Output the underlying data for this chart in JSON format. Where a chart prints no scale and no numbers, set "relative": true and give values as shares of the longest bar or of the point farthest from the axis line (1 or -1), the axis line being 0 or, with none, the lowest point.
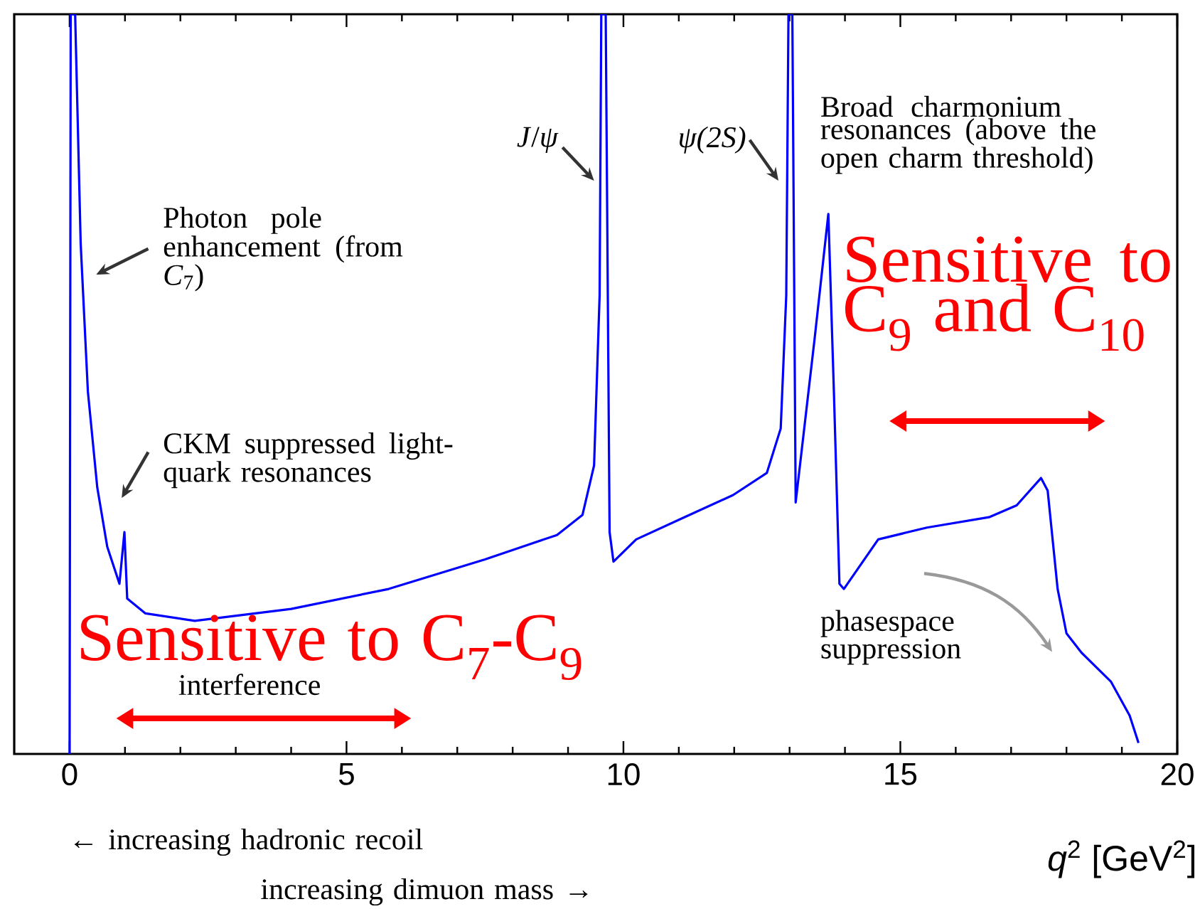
{
  "chart_data": {
    "type": "line",
    "relative": true,
    "xlabel": "*q*$^{2}$ [GeV$^{2}$]",
    "xlim": [
      -1,
      20
    ],
    "xticks": [
      0,
      5,
      10,
      15,
      20
    ],
    "series": [
      {
        "color": "#0000ff",
        "x": [
          0,
          0.02,
          0.1,
          0.2,
          0.33,
          0.5,
          0.68,
          0.9,
          0.99,
          1.04,
          1.37,
          2.26,
          4.0,
          5.76,
          7.5,
          8.8,
          9.26,
          9.47,
          9.57,
          9.6,
          9.68,
          9.75,
          9.82,
          10.23,
          11.1,
          11.98,
          12.59,
          12.84,
          12.94,
          12.98,
          13.05,
          13.11,
          13.45,
          13.7,
          13.8,
          13.9,
          13.98,
          14.6,
          15.48,
          16.6,
          17.1,
          17.54,
          17.66,
          17.84,
          18.0,
          18.27,
          18.8,
          19.14,
          19.3
        ],
        "values": [
          0,
          1,
          1,
          0.69,
          0.49,
          0.36,
          0.28,
          0.23,
          0.3,
          0.21,
          0.19,
          0.18,
          0.196,
          0.223,
          0.263,
          0.296,
          0.323,
          0.39,
          0.62,
          1,
          1,
          0.3,
          0.26,
          0.29,
          0.32,
          0.35,
          0.38,
          0.44,
          0.62,
          1,
          1,
          0.34,
          0.56,
          0.73,
          0.49,
          0.23,
          0.223,
          0.29,
          0.306,
          0.32,
          0.336,
          0.373,
          0.356,
          0.223,
          0.163,
          0.137,
          0.098,
          0.052,
          0.015
        ]
      }
    ],
    "annotations": [
      "*J*/*ψ*",
      "ψ(2S)",
      "Broad charmonium resonances (above the open charm threshold)",
      "Photon pole enhancement (from *C*$_{7}$)",
      "CKM suppressed light-quark resonances",
      "Sensitive to C$_{7}$-C$_{9}$",
      "interference",
      "Sensitive to C$_{9}$ and C$_{10}$",
      "phasespace suppression",
      "← increasing hadronic recoil",
      "increasing dimuon mass →"
    ]
  }
}
